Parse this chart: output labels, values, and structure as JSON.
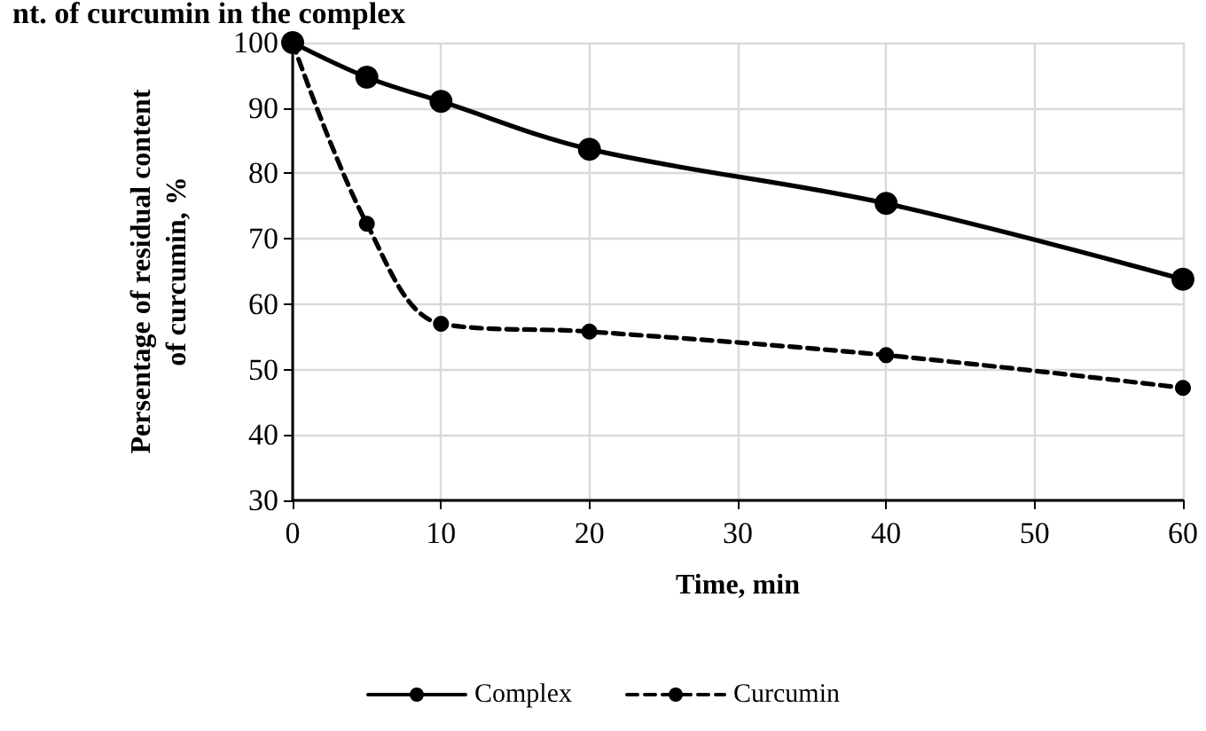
{
  "chart_data": {
    "type": "line",
    "title": "nt. of curcumin in the complex",
    "xlabel": "Time, min",
    "ylabel": "Persentage of residual content\nof curcumin, %",
    "x": [
      0,
      5,
      10,
      20,
      40,
      60
    ],
    "series": [
      {
        "name": "Complex",
        "color": "#000000",
        "values": [
          100,
          94.7,
          91,
          83.7,
          75.4,
          63.8
        ],
        "line_style": "solid"
      },
      {
        "name": "Curcumin",
        "color": "#000000",
        "values": [
          100,
          72.3,
          57,
          55.8,
          52.2,
          47.2
        ],
        "line_style": "dashed"
      }
    ],
    "xlim": [
      0,
      60
    ],
    "xticks": [
      0,
      10,
      20,
      30,
      40,
      50,
      60
    ],
    "ylim": [
      30,
      100
    ],
    "yticks": [
      30,
      40,
      50,
      60,
      70,
      80,
      90,
      100
    ],
    "grid": true,
    "legend": "bottom",
    "marker": "circle"
  }
}
